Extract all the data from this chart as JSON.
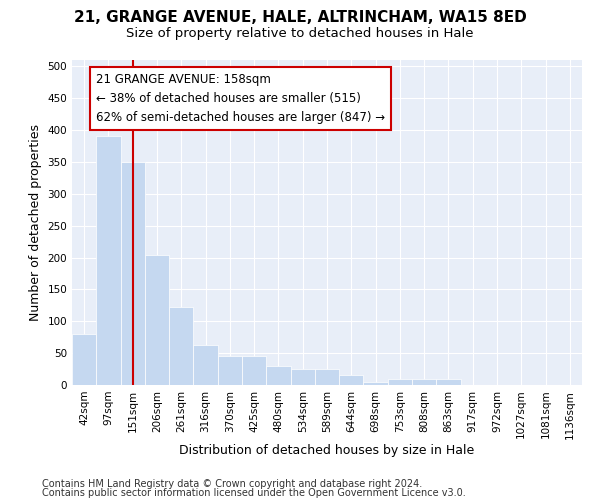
{
  "title1": "21, GRANGE AVENUE, HALE, ALTRINCHAM, WA15 8ED",
  "title2": "Size of property relative to detached houses in Hale",
  "xlabel": "Distribution of detached houses by size in Hale",
  "ylabel": "Number of detached properties",
  "categories": [
    "42sqm",
    "97sqm",
    "151sqm",
    "206sqm",
    "261sqm",
    "316sqm",
    "370sqm",
    "425sqm",
    "480sqm",
    "534sqm",
    "589sqm",
    "644sqm",
    "698sqm",
    "753sqm",
    "808sqm",
    "863sqm",
    "917sqm",
    "972sqm",
    "1027sqm",
    "1081sqm",
    "1136sqm"
  ],
  "values": [
    80,
    390,
    350,
    204,
    123,
    63,
    45,
    45,
    30,
    25,
    25,
    15,
    5,
    10,
    10,
    10,
    0,
    0,
    0,
    0,
    0
  ],
  "bar_color": "#c5d8f0",
  "bar_edgecolor": "#c5d8f0",
  "vline_color": "#cc0000",
  "annotation_title": "21 GRANGE AVENUE: 158sqm",
  "annotation_line1": "← 38% of detached houses are smaller (515)",
  "annotation_line2": "62% of semi-detached houses are larger (847) →",
  "annotation_box_edgecolor": "#cc0000",
  "annotation_facecolor": "white",
  "ylim": [
    0,
    510
  ],
  "yticks": [
    0,
    50,
    100,
    150,
    200,
    250,
    300,
    350,
    400,
    450,
    500
  ],
  "footer1": "Contains HM Land Registry data © Crown copyright and database right 2024.",
  "footer2": "Contains public sector information licensed under the Open Government Licence v3.0.",
  "title1_fontsize": 11,
  "title2_fontsize": 9.5,
  "axis_label_fontsize": 9,
  "tick_fontsize": 7.5,
  "footer_fontsize": 7,
  "background_color": "#e8eef8"
}
